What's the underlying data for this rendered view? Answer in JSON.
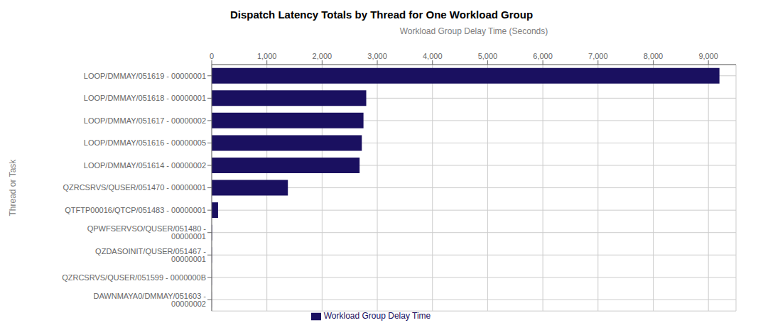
{
  "chart_data": {
    "type": "bar",
    "orientation": "horizontal",
    "title": "Dispatch Latency Totals by Thread for One Workload Group",
    "xlabel": "Workload Group Delay Time (Seconds)",
    "ylabel": "Thread or Task",
    "categories": [
      "LOOP/DMMAY/051619 - 00000001",
      "LOOP/DMMAY/051618 - 00000001",
      "LOOP/DMMAY/051617 - 00000002",
      "LOOP/DMMAY/051616 - 00000005",
      "LOOP/DMMAY/051614 - 00000002",
      "QZRCSRVS/QUSER/051470 - 00000001",
      "QTFTP00016/QTCP/051483 - 00000001",
      "QPWFSERVSO/QUSER/051480 - 00000001",
      "QZDASOINIT/QUSER/051467 - 00000001",
      "QZRCSRVS/QUSER/051599 - 0000000B",
      "DAWNMAYA0/DMMAY/051603 - 00000002"
    ],
    "series": [
      {
        "name": "Workload Group Delay Time",
        "color": "#1a1060",
        "values": [
          9200,
          2800,
          2750,
          2720,
          2680,
          1380,
          115,
          8,
          5,
          3,
          2
        ]
      }
    ],
    "xlim": [
      0,
      9500
    ],
    "xticks": [
      0,
      {
        "value": 1000,
        "label": "1,000"
      },
      {
        "value": 2000,
        "label": "2,000"
      },
      {
        "value": 3000,
        "label": "3,000"
      },
      {
        "value": 4000,
        "label": "4,000"
      },
      {
        "value": 5000,
        "label": "5,000"
      },
      {
        "value": 6000,
        "label": "6,000"
      },
      {
        "value": 7000,
        "label": "7,000"
      },
      {
        "value": 8000,
        "label": "8,000"
      },
      {
        "value": 9000,
        "label": "9,000"
      }
    ],
    "grid": true,
    "legend": "bottom"
  }
}
